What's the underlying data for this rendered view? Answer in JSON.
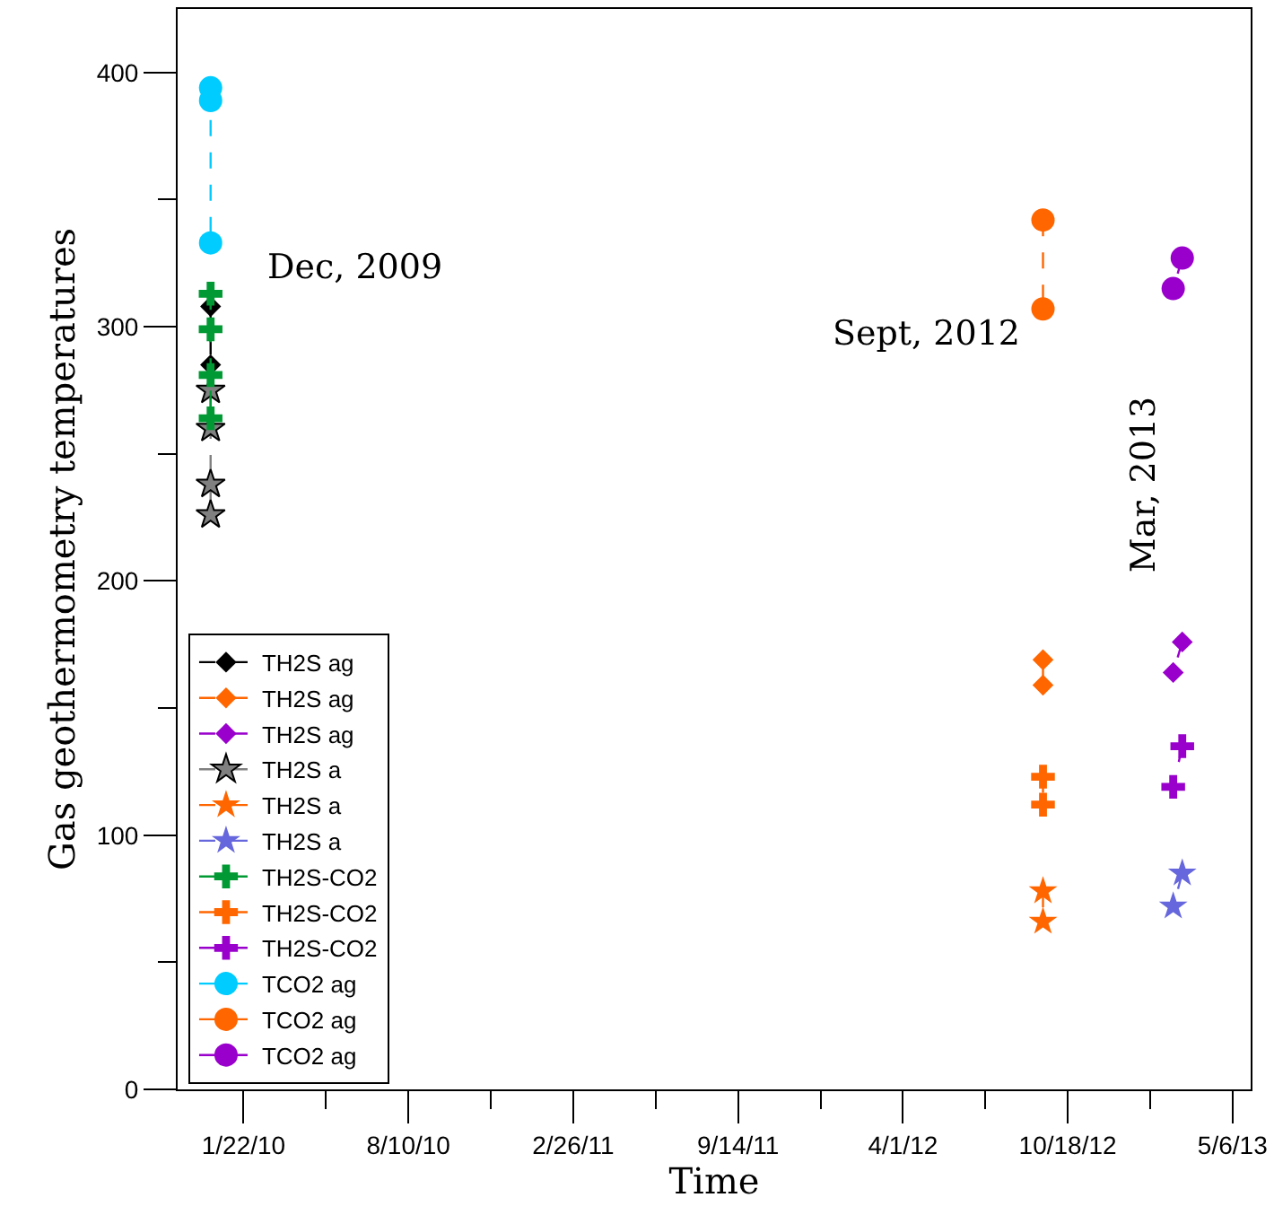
{
  "chart_data": {
    "type": "line",
    "xlabel": "Time",
    "ylabel": "Gas geothermometry temperatures",
    "xlim": [
      "2009-11-03",
      "2013-05-28"
    ],
    "xticks": [
      {
        "value": "2010-01-22",
        "label": "1/22/10"
      },
      {
        "value": "2010-05-02",
        "label": null
      },
      {
        "value": "2010-08-10",
        "label": "8/10/10"
      },
      {
        "value": "2010-11-18",
        "label": null
      },
      {
        "value": "2011-02-26",
        "label": "2/26/11"
      },
      {
        "value": "2011-06-06",
        "label": null
      },
      {
        "value": "2011-09-14",
        "label": "9/14/11"
      },
      {
        "value": "2011-12-23",
        "label": null
      },
      {
        "value": "2012-04-01",
        "label": "4/1/12"
      },
      {
        "value": "2012-07-10",
        "label": null
      },
      {
        "value": "2012-10-18",
        "label": "10/18/12"
      },
      {
        "value": "2013-01-26",
        "label": null
      },
      {
        "value": "2013-05-06",
        "label": "5/6/13"
      }
    ],
    "ylim": [
      0,
      425
    ],
    "yticks": [
      0,
      {
        "value": 50,
        "label": null
      },
      100,
      {
        "value": 150,
        "label": null
      },
      200,
      {
        "value": 250,
        "label": null
      },
      300,
      {
        "value": 350,
        "label": null
      },
      400
    ],
    "grid": false,
    "legend": "bottom left",
    "line_style": "dashed",
    "annotations": [
      "Dec, 2009",
      "Sept, 2012",
      "Mar, 2013"
    ],
    "series": [
      {
        "name": "TH2S ag",
        "color": "#000000",
        "marker": "diamond",
        "x": [
          "2009-12-13",
          "2009-12-13"
        ],
        "values": [
          308,
          285
        ]
      },
      {
        "name": "TH2S ag",
        "color": "#ff6600",
        "marker": "diamond",
        "x": [
          "2012-09-18",
          "2012-09-18"
        ],
        "values": [
          169,
          159
        ]
      },
      {
        "name": "TH2S ag",
        "color": "#9900cc",
        "marker": "diamond",
        "x": [
          "2013-03-06",
          "2013-02-23"
        ],
        "values": [
          176,
          164
        ]
      },
      {
        "name": "TH2S a",
        "color": "#808080",
        "marker": "star",
        "x": [
          "2009-12-13",
          "2009-12-13",
          "2009-12-13",
          "2009-12-13"
        ],
        "values": [
          275,
          260,
          238,
          226
        ]
      },
      {
        "name": "TH2S a",
        "color": "#ff6600",
        "marker": "star",
        "x": [
          "2012-09-18",
          "2012-09-18"
        ],
        "values": [
          78,
          66
        ]
      },
      {
        "name": "TH2S a",
        "color": "#6666dd",
        "marker": "star",
        "x": [
          "2013-03-06",
          "2013-02-23"
        ],
        "values": [
          85,
          72
        ]
      },
      {
        "name": "TH2S-CO2",
        "color": "#009933",
        "marker": "cross",
        "x": [
          "2009-12-13",
          "2009-12-13",
          "2009-12-13",
          "2009-12-13"
        ],
        "values": [
          313,
          299,
          281,
          264
        ]
      },
      {
        "name": "TH2S-CO2",
        "color": "#ff6600",
        "marker": "cross",
        "x": [
          "2012-09-18",
          "2012-09-18"
        ],
        "values": [
          123,
          112
        ]
      },
      {
        "name": "TH2S-CO2",
        "color": "#9900cc",
        "marker": "cross",
        "x": [
          "2013-03-06",
          "2013-02-23"
        ],
        "values": [
          135,
          119
        ]
      },
      {
        "name": "TCO2 ag",
        "color": "#00ccff",
        "marker": "circle",
        "x": [
          "2009-12-13",
          "2009-12-13",
          "2009-12-13"
        ],
        "values": [
          394,
          389,
          333
        ]
      },
      {
        "name": "TCO2 ag",
        "color": "#ff6600",
        "marker": "circle",
        "x": [
          "2012-09-18",
          "2012-09-18"
        ],
        "values": [
          342,
          307
        ]
      },
      {
        "name": "TCO2 ag",
        "color": "#9900cc",
        "marker": "circle",
        "x": [
          "2013-03-06",
          "2013-02-23"
        ],
        "values": [
          327,
          315
        ]
      }
    ]
  }
}
